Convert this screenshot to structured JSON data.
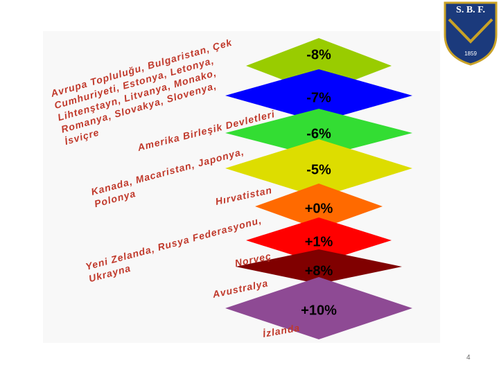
{
  "logo": {
    "title": "S. B. F.",
    "year": "1859"
  },
  "tiers": [
    {
      "label": "-8%",
      "color": "#99cc00"
    },
    {
      "label": "-7%",
      "color": "#0000ff"
    },
    {
      "label": "-6%",
      "color": "#33dd33"
    },
    {
      "label": "-5%",
      "color": "#dddd00"
    },
    {
      "label": "+0%",
      "color": "#ff6a00"
    },
    {
      "label": "+1%",
      "color": "#ff0000"
    },
    {
      "label": "+8%",
      "color": "#800000"
    },
    {
      "label": "+10%",
      "color": "#8e4a94"
    }
  ],
  "country_groups": [
    {
      "lines": [
        "Avrupa Topluluğu, Bulgaristan, Çek",
        "Cumhuriyeti, Estonya, Letonya,",
        "Lihtenştayn, Litvanya, Monako,",
        "Romanya, Slovakya, Slovenya,",
        "İsviçre"
      ]
    },
    {
      "lines": [
        "Amerika Birleşik Devletleri"
      ]
    },
    {
      "lines": [
        "Kanada, Macaristan, Japonya,",
        "Polonya"
      ]
    },
    {
      "lines": [
        "Hırvatistan"
      ]
    },
    {
      "lines": [
        "Yeni Zelanda, Rusya Federasyonu,",
        "Ukrayna"
      ]
    },
    {
      "lines": [
        "Norveç"
      ]
    },
    {
      "lines": [
        "Avustralya"
      ]
    },
    {
      "lines": [
        "İzlanda"
      ]
    }
  ],
  "page_number": "4"
}
